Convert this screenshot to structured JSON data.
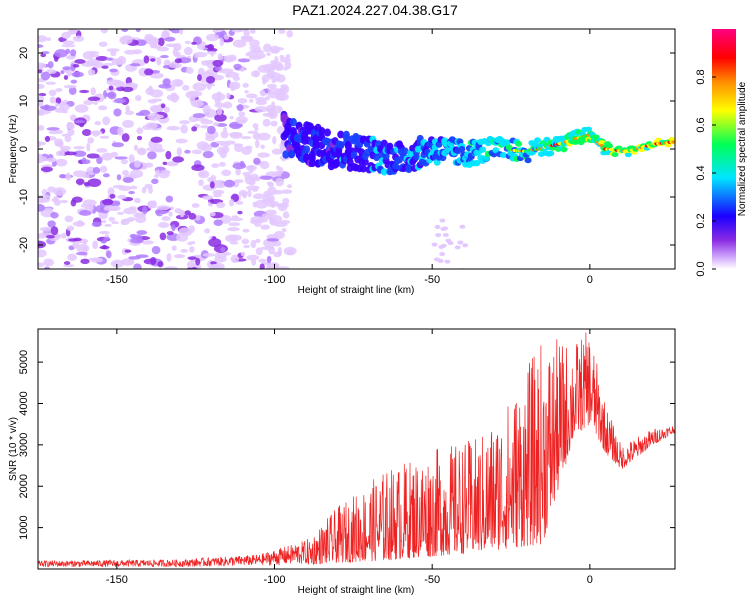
{
  "title": "PAZ1.2024.227.04.38.G17",
  "chart_data": [
    {
      "type": "heatmap",
      "xlabel": "Height of straight line (km)",
      "ylabel": "Frequency (Hz)",
      "xlim": [
        -175,
        27
      ],
      "ylim": [
        -25,
        25
      ],
      "xticks": [
        -150,
        -100,
        -50,
        0
      ],
      "yticks": [
        -20,
        -10,
        0,
        10,
        20
      ],
      "colorbar": {
        "label": "Normalized spectral amplitude",
        "range": [
          0,
          1
        ],
        "ticks": [
          "0.0",
          "0.2",
          "0.4",
          "0.6",
          "0.8"
        ],
        "colormap": [
          "#ffffff",
          "#d9b8ff",
          "#8a2be2",
          "#1a00ff",
          "#00e5ff",
          "#00ff55",
          "#ffff00",
          "#ff8c00",
          "#ff0000",
          "#ff0080"
        ]
      },
      "ridge": [
        {
          "x": -97,
          "y": 3
        },
        {
          "x": -90,
          "y": 1
        },
        {
          "x": -80,
          "y": 0
        },
        {
          "x": -70,
          "y": -1
        },
        {
          "x": -60,
          "y": -2
        },
        {
          "x": -50,
          "y": 0
        },
        {
          "x": -40,
          "y": -1
        },
        {
          "x": -30,
          "y": 0
        },
        {
          "x": -20,
          "y": -0.5
        },
        {
          "x": -10,
          "y": 1
        },
        {
          "x": -5,
          "y": 2
        },
        {
          "x": 0,
          "y": 3
        },
        {
          "x": 5,
          "y": 0
        },
        {
          "x": 12,
          "y": -0.5
        },
        {
          "x": 20,
          "y": 1
        },
        {
          "x": 27,
          "y": 1.5
        }
      ]
    },
    {
      "type": "line",
      "xlabel": "Height of straight line (km)",
      "ylabel": "SNR (10 * v/v)",
      "xlim": [
        -175,
        27
      ],
      "ylim": [
        0,
        5800
      ],
      "xticks": [
        -150,
        -100,
        -50,
        0
      ],
      "yticks": [
        1000,
        2000,
        3000,
        4000,
        5000
      ],
      "color": "#ee2222",
      "envelope": [
        {
          "x": -175,
          "lo": 50,
          "hi": 200
        },
        {
          "x": -130,
          "lo": 50,
          "hi": 230
        },
        {
          "x": -105,
          "lo": 80,
          "hi": 350
        },
        {
          "x": -90,
          "lo": 100,
          "hi": 700
        },
        {
          "x": -80,
          "lo": 150,
          "hi": 1500
        },
        {
          "x": -65,
          "lo": 200,
          "hi": 2400
        },
        {
          "x": -50,
          "lo": 300,
          "hi": 2900
        },
        {
          "x": -35,
          "lo": 400,
          "hi": 3200
        },
        {
          "x": -25,
          "lo": 500,
          "hi": 4200
        },
        {
          "x": -15,
          "lo": 600,
          "hi": 5600
        },
        {
          "x": -5,
          "lo": 3200,
          "hi": 5500
        },
        {
          "x": 0,
          "lo": 3500,
          "hi": 5800
        },
        {
          "x": 5,
          "lo": 2800,
          "hi": 4000
        },
        {
          "x": 10,
          "lo": 2400,
          "hi": 3000
        },
        {
          "x": 20,
          "lo": 3000,
          "hi": 3400
        },
        {
          "x": 27,
          "lo": 3300,
          "hi": 3500
        }
      ]
    }
  ]
}
